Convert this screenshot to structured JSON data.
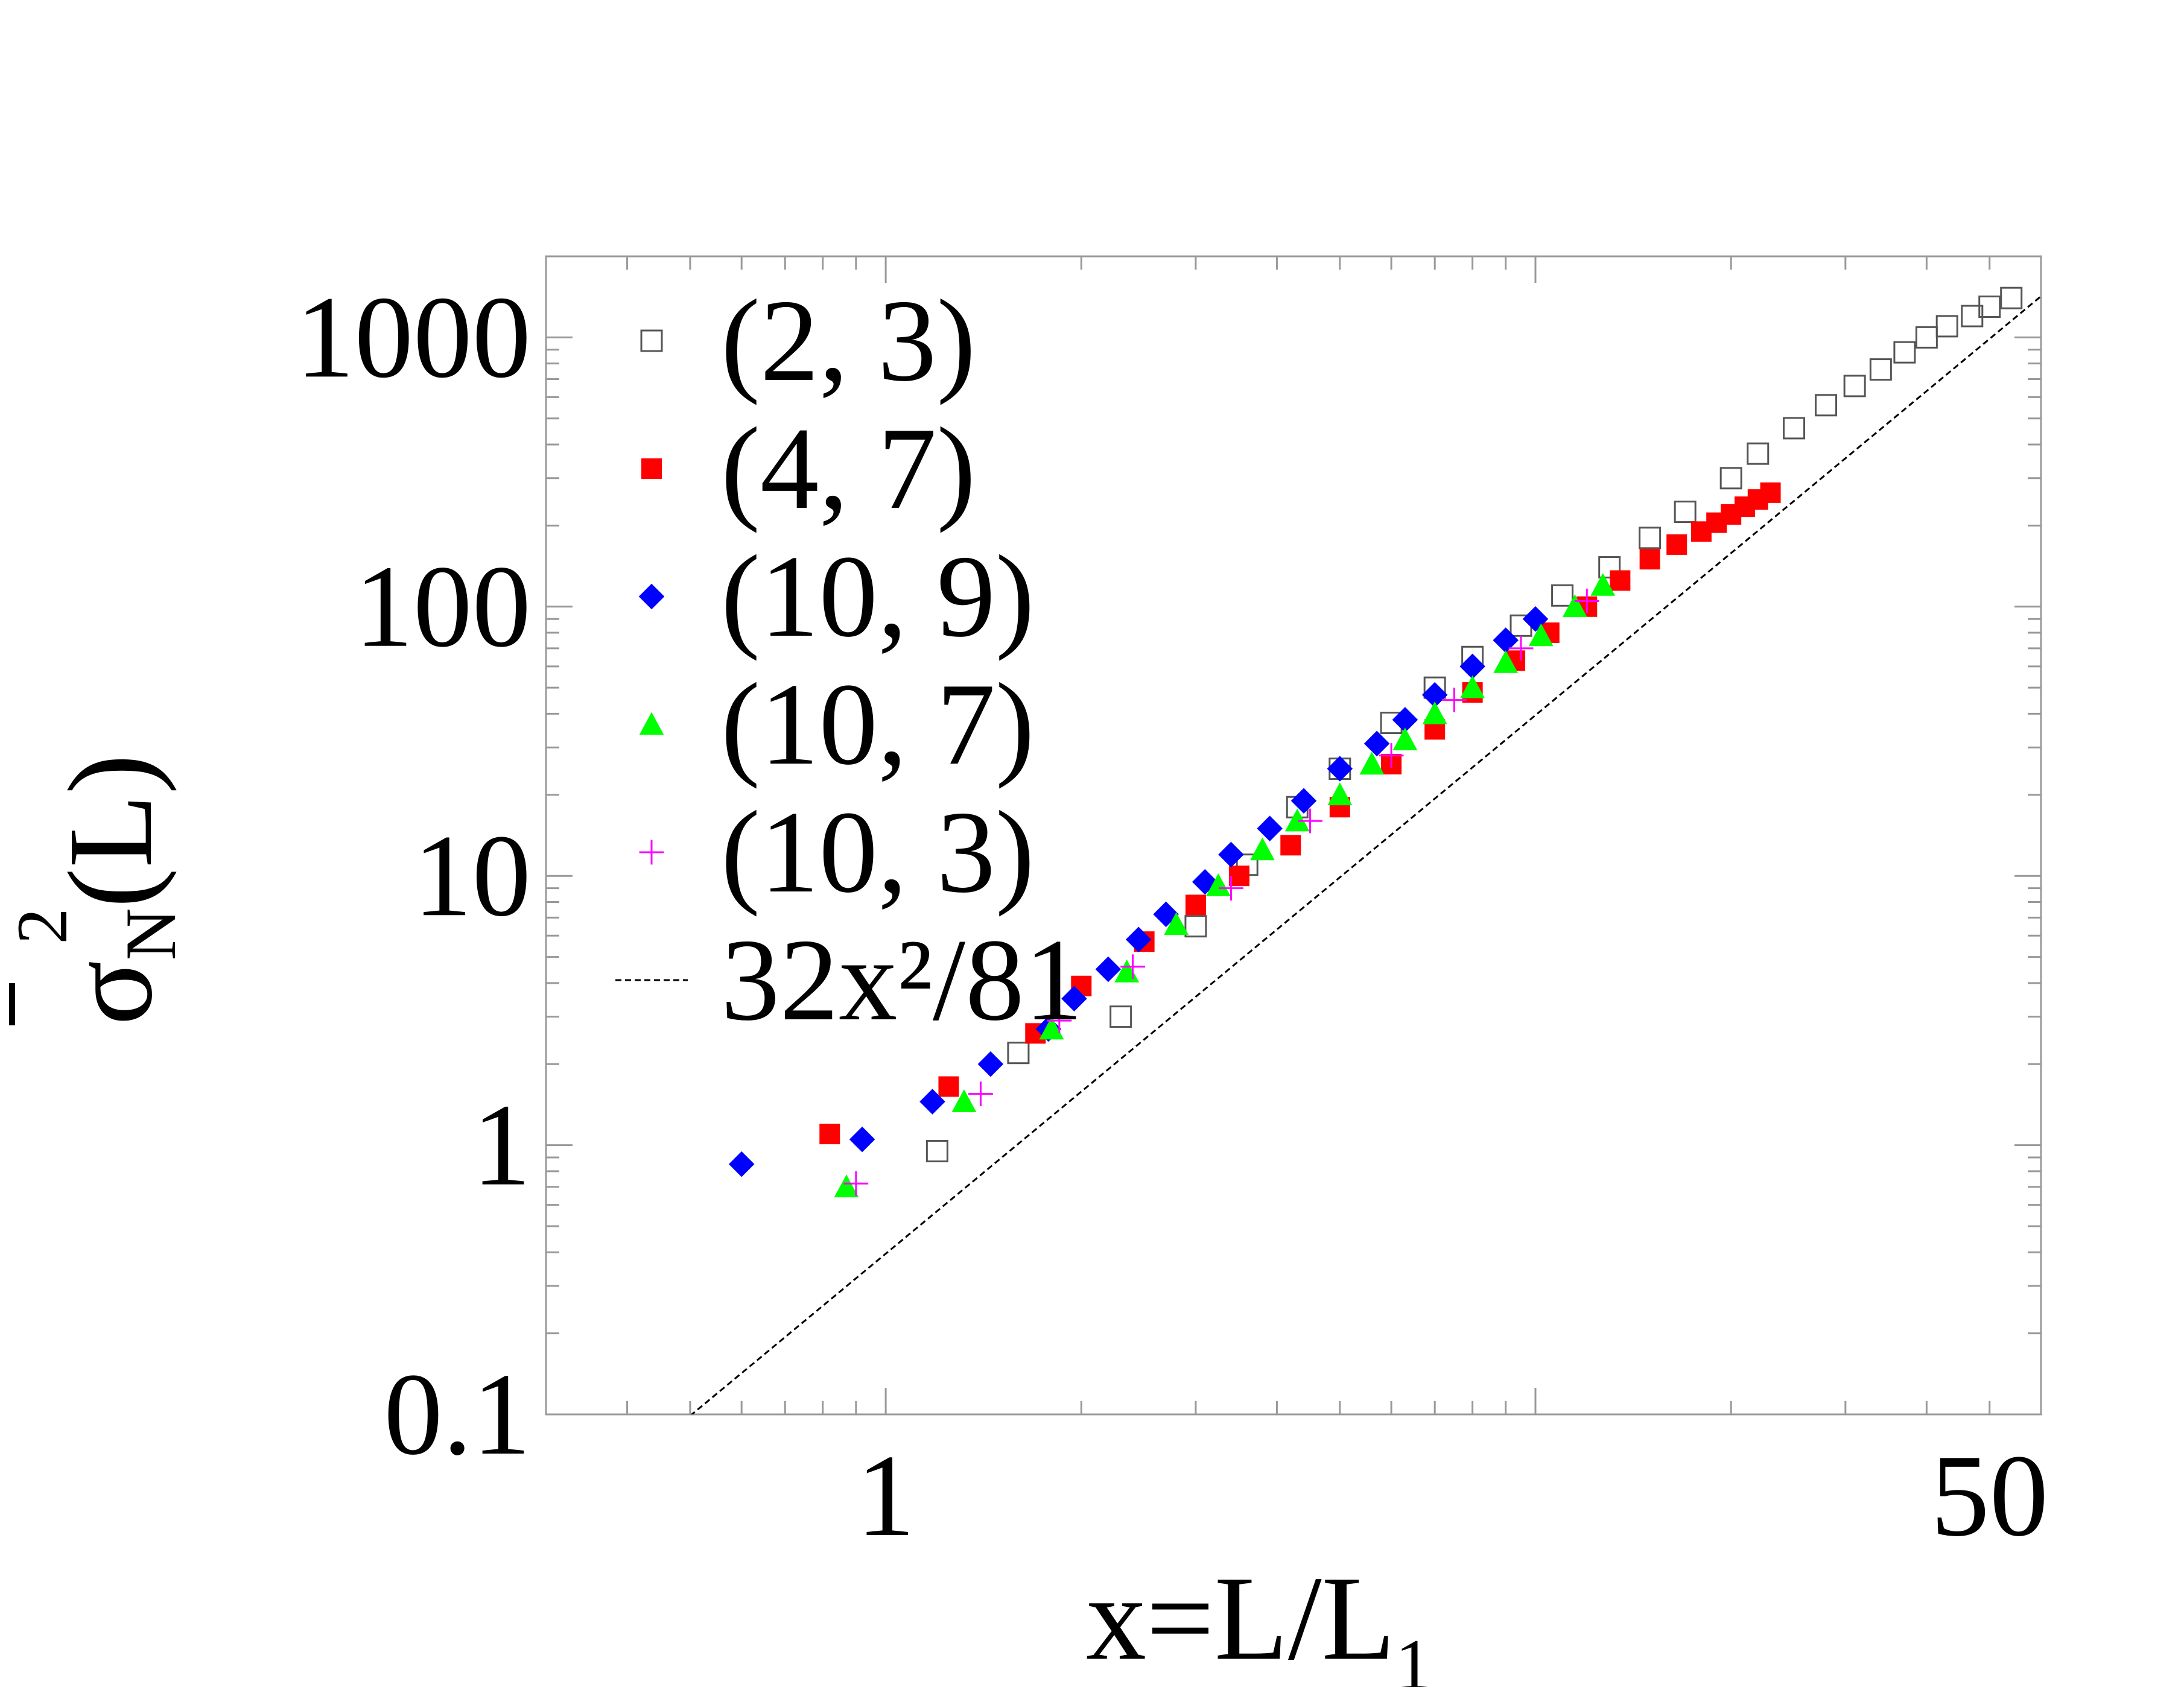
{
  "chart_data": {
    "type": "scatter",
    "x_scale": "log",
    "y_scale": "log",
    "xlim": [
      0.3,
      60
    ],
    "ylim": [
      0.1,
      2000
    ],
    "x_ticks": [
      {
        "value": 1,
        "label": "1"
      },
      {
        "value": 50,
        "label": "50"
      }
    ],
    "y_ticks": [
      {
        "value": 0.1,
        "label": "0.1"
      },
      {
        "value": 1,
        "label": "1"
      },
      {
        "value": 10,
        "label": "10"
      },
      {
        "value": 100,
        "label": "100"
      },
      {
        "value": 1000,
        "label": "1000"
      }
    ],
    "xlabel": {
      "main": "x=L/L",
      "sub": "1"
    },
    "ylabel": {
      "main": "σ",
      "sub": "N",
      "sup": "2",
      "tail": "(L)"
    },
    "grid": false,
    "legend_position": "top-left",
    "series": [
      {
        "name": "(2, 3)",
        "marker": "open-square",
        "color": "#555555",
        "x": [
          1.2,
          1.6,
          2.3,
          3.0,
          3.6,
          4.3,
          5.0,
          6.0,
          7.0,
          8.0,
          9.5,
          11,
          13,
          15,
          17,
          20,
          22,
          25,
          28,
          31,
          34,
          37,
          40,
          43,
          47,
          50,
          54
        ],
        "y": [
          0.95,
          2.2,
          3.0,
          6.5,
          11,
          18,
          25,
          37,
          50,
          65,
          85,
          110,
          140,
          180,
          225,
          300,
          370,
          460,
          560,
          660,
          760,
          880,
          1000,
          1100,
          1200,
          1300,
          1400
        ]
      },
      {
        "name": "(4, 7)",
        "marker": "filled-square",
        "color": "#ff0000",
        "x": [
          0.82,
          1.25,
          1.7,
          2.0,
          2.5,
          3.0,
          3.5,
          4.2,
          5.0,
          6.0,
          7.0,
          8.0,
          9.3,
          10.5,
          12,
          13.5,
          15,
          16.5,
          18,
          19,
          20,
          21,
          22,
          23
        ],
        "y": [
          1.1,
          1.65,
          2.6,
          3.9,
          5.7,
          7.8,
          10,
          13,
          18,
          26,
          35,
          48,
          63,
          80,
          100,
          125,
          150,
          170,
          190,
          205,
          220,
          235,
          250,
          265
        ]
      },
      {
        "name": "(10, 9)",
        "marker": "filled-diamond",
        "color": "#0000ff",
        "x": [
          0.6,
          0.92,
          1.18,
          1.45,
          1.78,
          1.95,
          2.2,
          2.45,
          2.7,
          3.1,
          3.4,
          3.9,
          4.4,
          5.0,
          5.7,
          6.3,
          7.0,
          8.0,
          9.0,
          10.0
        ],
        "y": [
          0.85,
          1.05,
          1.45,
          2.0,
          2.7,
          3.5,
          4.5,
          5.8,
          7.2,
          9.5,
          12,
          15,
          19,
          25,
          31,
          38,
          47,
          60,
          75,
          90
        ]
      },
      {
        "name": "(10, 7)",
        "marker": "filled-triangle",
        "color": "#00ff00",
        "x": [
          0.87,
          1.32,
          1.8,
          2.35,
          2.8,
          3.25,
          3.8,
          4.3,
          5.0,
          5.6,
          6.3,
          7.0,
          8.0,
          9.0,
          10.2,
          11.5,
          12.7
        ],
        "y": [
          0.7,
          1.45,
          2.7,
          4.4,
          6.6,
          9.2,
          12.5,
          16,
          20,
          26,
          32,
          40,
          50,
          62,
          78,
          100,
          120
        ]
      },
      {
        "name": "(10, 3)",
        "marker": "plus",
        "color": "#ff00ff",
        "x": [
          0.9,
          1.4,
          1.85,
          2.4,
          3.4,
          4.5,
          6.0,
          7.5,
          9.5,
          12
        ],
        "y": [
          0.72,
          1.55,
          2.9,
          4.6,
          9.0,
          16,
          28,
          45,
          70,
          105
        ]
      },
      {
        "name": "32x²/81",
        "marker": "dashed-line",
        "color": "#000000",
        "function": "32*x^2/81",
        "x": [
          0.5,
          60
        ],
        "y": [
          0.0988,
          1422
        ]
      }
    ]
  }
}
